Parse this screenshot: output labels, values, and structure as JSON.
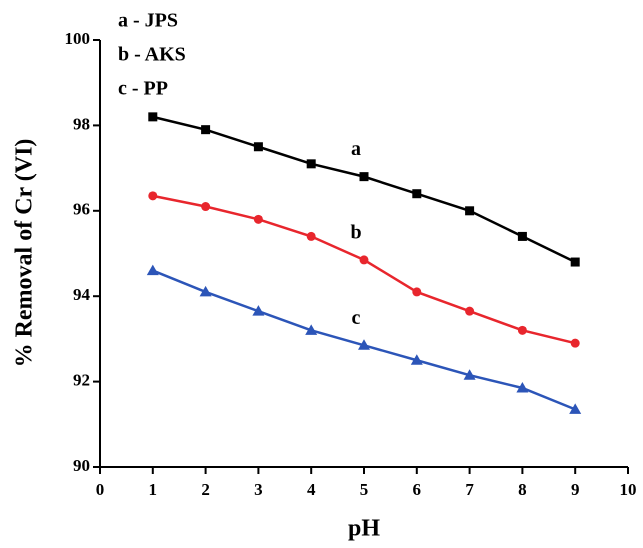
{
  "chart_data": {
    "type": "line",
    "x": [
      1,
      2,
      3,
      4,
      5,
      6,
      7,
      8,
      9
    ],
    "series": [
      {
        "name": "a - JPS",
        "label": "a",
        "color": "#000000",
        "marker": "square",
        "values": [
          98.2,
          97.9,
          97.5,
          97.1,
          96.8,
          96.4,
          96.0,
          95.4,
          94.8
        ]
      },
      {
        "name": "b - AKS",
        "label": "b",
        "color": "#e8262d",
        "marker": "circle",
        "values": [
          96.35,
          96.1,
          95.8,
          95.4,
          94.85,
          94.1,
          93.65,
          93.2,
          92.9
        ]
      },
      {
        "name": "c - PP",
        "label": "c",
        "color": "#2c55b8",
        "marker": "triangle",
        "values": [
          94.6,
          94.1,
          93.65,
          93.2,
          92.85,
          92.5,
          92.15,
          91.85,
          91.35
        ]
      }
    ],
    "xlabel": "pH",
    "ylabel": "% Removal of Cr (VI)",
    "xlim": [
      0,
      10
    ],
    "xticks": [
      0,
      1,
      2,
      3,
      4,
      5,
      6,
      7,
      8,
      9,
      10
    ],
    "ylim": [
      90,
      100
    ],
    "yticks": [
      90,
      92,
      94,
      96,
      98,
      100
    ],
    "legend": "top-left",
    "grid": false
  }
}
